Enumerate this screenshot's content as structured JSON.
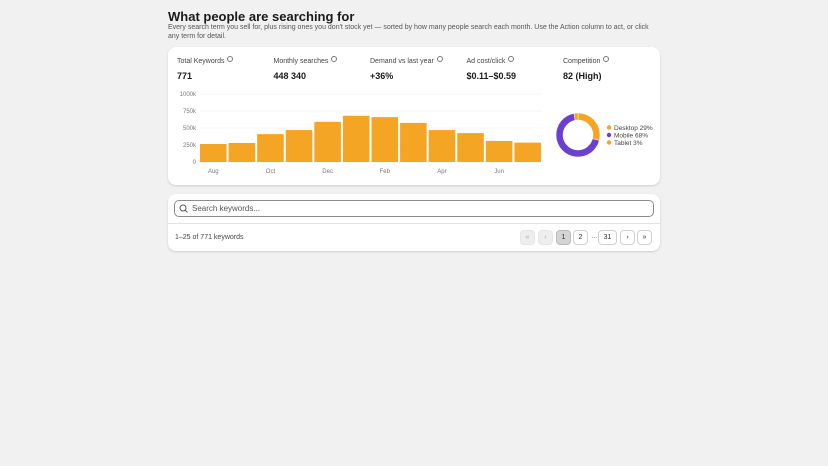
{
  "header": {
    "title": "What people are searching for",
    "subtitle": "Every search term you sell for, plus rising ones you don't stock yet — sorted by how many people search each month. Use the Action column to act, or click any term for detail."
  },
  "stats": [
    {
      "label": "Total Keywords",
      "value": "771"
    },
    {
      "label": "Monthly searches",
      "value": "448 340"
    },
    {
      "label": "Demand vs last year",
      "value": "+36%"
    },
    {
      "label": "Ad cost/click",
      "value": "$0.11–$0.59"
    },
    {
      "label": "Competition",
      "value": "82 (High)"
    }
  ],
  "chart_data": [
    {
      "type": "bar",
      "categories": [
        "Aug",
        null,
        "Oct",
        null,
        "Dec",
        null,
        "Feb",
        null,
        "Apr",
        null,
        "Jun",
        null
      ],
      "values": [
        265000,
        280000,
        410000,
        470000,
        590000,
        680000,
        660000,
        575000,
        470000,
        425000,
        310000,
        285000
      ],
      "color": "#f5a524",
      "ylim": [
        0,
        1000000
      ],
      "yticks": [
        0,
        {
          "value": 250000,
          "label": "250k"
        },
        {
          "value": 500000,
          "label": "500k"
        },
        {
          "value": 750000,
          "label": "750k"
        },
        {
          "value": 1000000,
          "label": "1000k"
        }
      ],
      "grid": true
    },
    {
      "type": "pie",
      "labels": [
        "Desktop",
        "Mobile",
        "Tablet"
      ],
      "values": [
        29,
        68,
        3
      ],
      "value_labels": [
        "29%",
        "68%",
        "3%"
      ],
      "colors": [
        "#f5a524",
        "#6b3fd0",
        "#f5a524"
      ]
    }
  ],
  "search": {
    "placeholder": "Search keywords..."
  },
  "footer": {
    "summary": "1–25 of 771 keywords",
    "pages": [
      "«",
      "‹",
      "1",
      "2",
      "…",
      "31",
      "›",
      "»"
    ]
  }
}
